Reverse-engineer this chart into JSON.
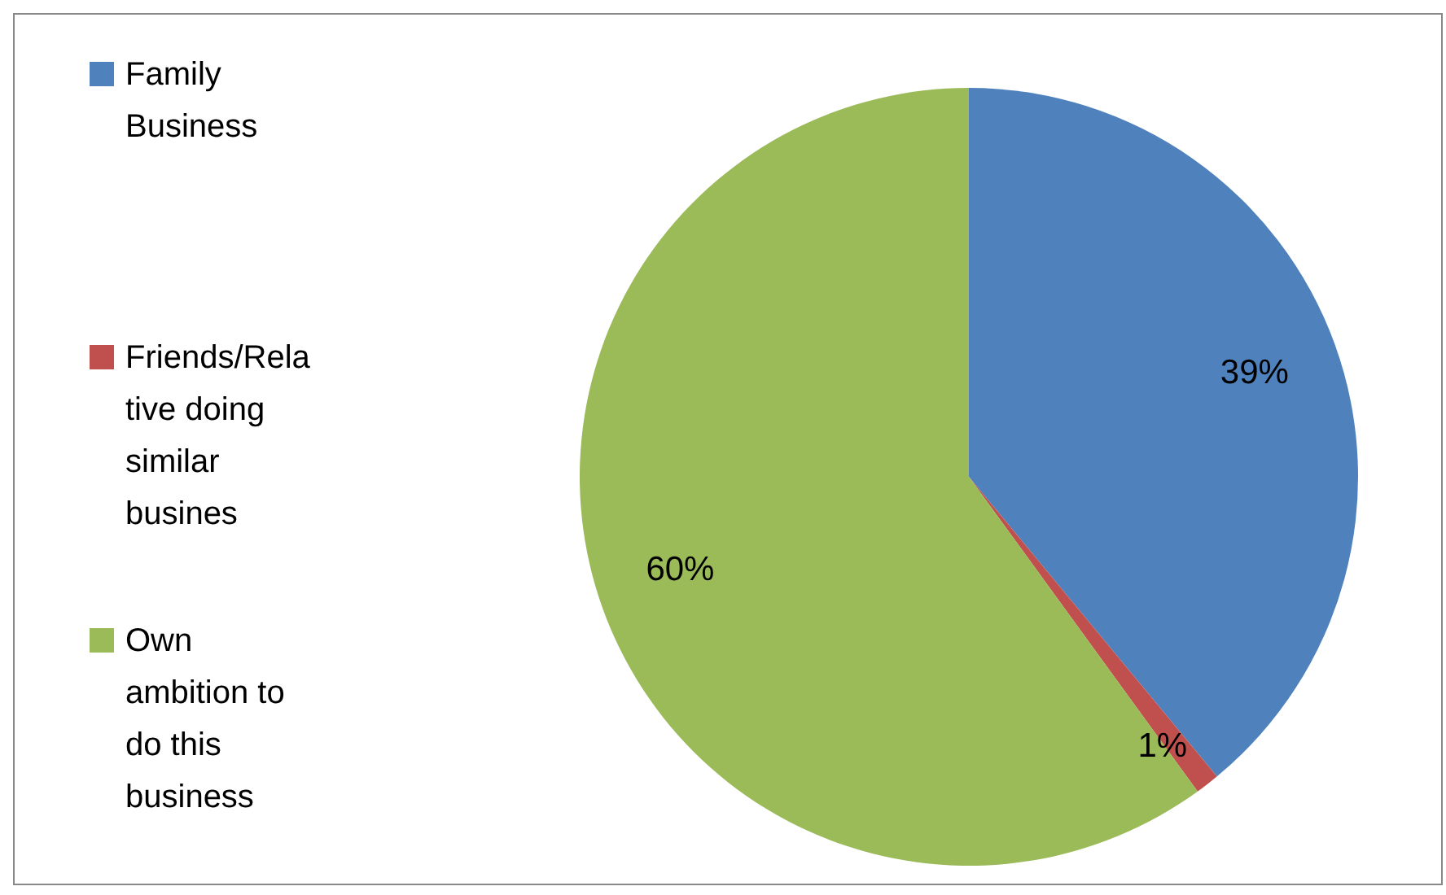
{
  "chart_data": {
    "type": "pie",
    "categories": [
      "Family Business",
      "Friends/Relative doing similar busines",
      "Own ambition to do this business"
    ],
    "values": [
      39,
      1,
      60
    ],
    "colors": [
      "#4f81bd",
      "#c0504d",
      "#9bbb59"
    ],
    "value_labels": [
      "39%",
      "1%",
      "60%"
    ],
    "legend": "left"
  }
}
